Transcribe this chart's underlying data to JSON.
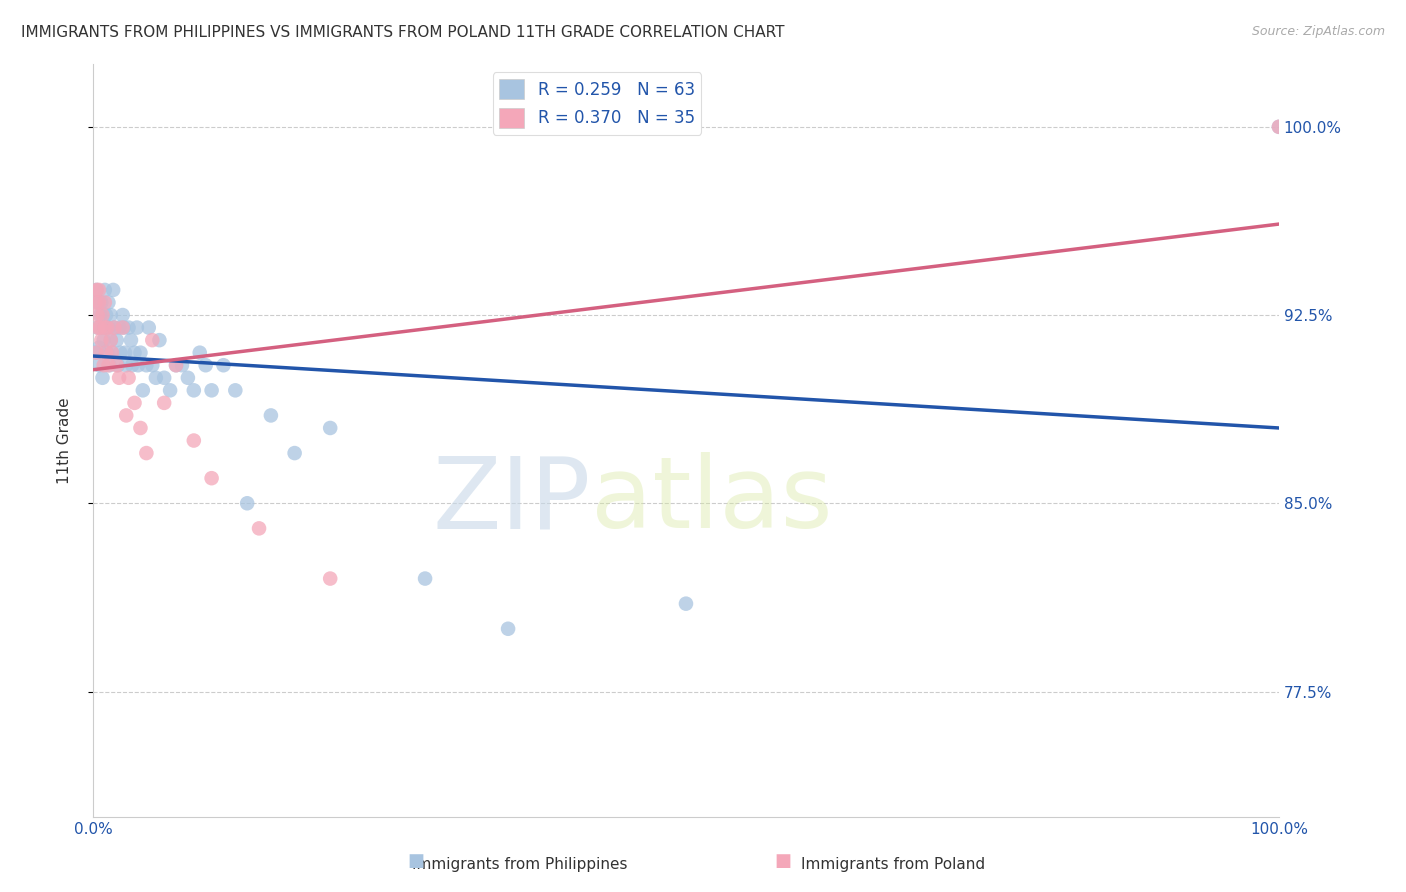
{
  "title": "IMMIGRANTS FROM PHILIPPINES VS IMMIGRANTS FROM POLAND 11TH GRADE CORRELATION CHART",
  "source": "Source: ZipAtlas.com",
  "ylabel": "11th Grade",
  "xlim": [
    0.0,
    1.0
  ],
  "ylim": [
    0.725,
    1.025
  ],
  "r_philippines": 0.259,
  "n_philippines": 63,
  "r_poland": 0.37,
  "n_poland": 35,
  "color_philippines": "#a8c4e0",
  "color_poland": "#f4a7b9",
  "line_color_philippines": "#2255aa",
  "line_color_poland": "#d46080",
  "background_color": "#ffffff",
  "watermark_zip": "ZIP",
  "watermark_atlas": "atlas",
  "legend_r_color": "#2255aa",
  "philippines_x": [
    0.002,
    0.003,
    0.004,
    0.004,
    0.005,
    0.005,
    0.006,
    0.007,
    0.008,
    0.008,
    0.009,
    0.01,
    0.01,
    0.011,
    0.012,
    0.013,
    0.013,
    0.014,
    0.015,
    0.015,
    0.016,
    0.017,
    0.018,
    0.02,
    0.021,
    0.022,
    0.023,
    0.025,
    0.026,
    0.027,
    0.028,
    0.03,
    0.032,
    0.033,
    0.035,
    0.037,
    0.038,
    0.04,
    0.042,
    0.045,
    0.047,
    0.05,
    0.053,
    0.056,
    0.06,
    0.065,
    0.07,
    0.075,
    0.08,
    0.085,
    0.09,
    0.095,
    0.1,
    0.11,
    0.12,
    0.13,
    0.15,
    0.17,
    0.2,
    0.28,
    0.35,
    0.5,
    1.0
  ],
  "philippines_y": [
    0.91,
    0.935,
    0.92,
    0.93,
    0.912,
    0.905,
    0.925,
    0.93,
    0.9,
    0.92,
    0.915,
    0.935,
    0.92,
    0.925,
    0.91,
    0.92,
    0.93,
    0.905,
    0.925,
    0.915,
    0.91,
    0.935,
    0.92,
    0.915,
    0.905,
    0.92,
    0.91,
    0.925,
    0.92,
    0.91,
    0.905,
    0.92,
    0.915,
    0.905,
    0.91,
    0.92,
    0.905,
    0.91,
    0.895,
    0.905,
    0.92,
    0.905,
    0.9,
    0.915,
    0.9,
    0.895,
    0.905,
    0.905,
    0.9,
    0.895,
    0.91,
    0.905,
    0.895,
    0.905,
    0.895,
    0.85,
    0.885,
    0.87,
    0.88,
    0.82,
    0.8,
    0.81,
    1.0
  ],
  "poland_x": [
    0.002,
    0.003,
    0.003,
    0.004,
    0.004,
    0.005,
    0.005,
    0.006,
    0.007,
    0.008,
    0.009,
    0.01,
    0.01,
    0.011,
    0.012,
    0.013,
    0.015,
    0.016,
    0.018,
    0.02,
    0.022,
    0.025,
    0.028,
    0.03,
    0.035,
    0.04,
    0.045,
    0.05,
    0.06,
    0.07,
    0.085,
    0.1,
    0.14,
    0.2,
    1.0
  ],
  "poland_y": [
    0.93,
    0.935,
    0.91,
    0.925,
    0.92,
    0.935,
    0.93,
    0.92,
    0.915,
    0.925,
    0.905,
    0.93,
    0.92,
    0.91,
    0.92,
    0.905,
    0.915,
    0.91,
    0.92,
    0.905,
    0.9,
    0.92,
    0.885,
    0.9,
    0.89,
    0.88,
    0.87,
    0.915,
    0.89,
    0.905,
    0.875,
    0.86,
    0.84,
    0.82,
    1.0
  ],
  "y_ticks": [
    0.775,
    0.85,
    0.925,
    1.0
  ],
  "y_tick_labels": [
    "77.5%",
    "85.0%",
    "92.5%",
    "100.0%"
  ]
}
